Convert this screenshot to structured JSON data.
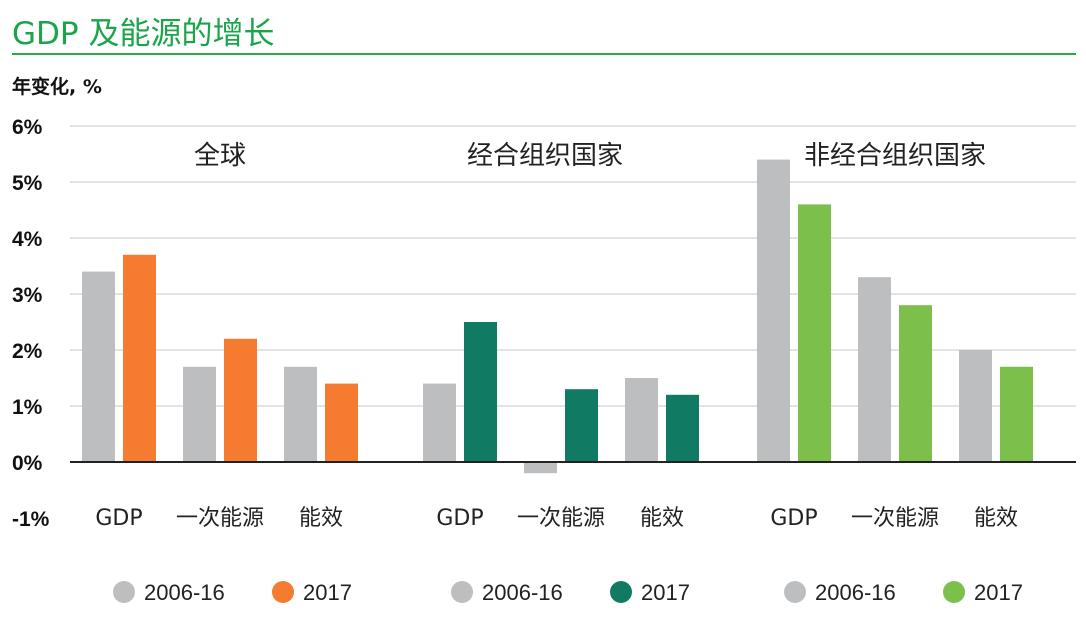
{
  "header": {
    "title": "GDP 及能源的增长",
    "ylabel": "年变化, %"
  },
  "chart_data": {
    "type": "bar",
    "ylim": [
      -1,
      6
    ],
    "yticks": [
      6,
      5,
      4,
      3,
      2,
      1,
      0,
      -1
    ],
    "ytick_labels": [
      "6%",
      "5%",
      "4%",
      "3%",
      "2%",
      "1%",
      "0%",
      "-1%"
    ],
    "grid": true,
    "legend_position": "bottom",
    "categories": [
      "GDP",
      "一次能源",
      "能效"
    ],
    "groups": [
      {
        "name": "全球",
        "series": [
          {
            "name": "2006-16",
            "color": "#bdbec0",
            "values": [
              3.4,
              1.7,
              1.7
            ]
          },
          {
            "name": "2017",
            "color": "#f47b30",
            "values": [
              3.7,
              2.2,
              1.4
            ]
          }
        ]
      },
      {
        "name": "经合组织国家",
        "series": [
          {
            "name": "2006-16",
            "color": "#bdbec0",
            "values": [
              1.4,
              -0.2,
              1.5
            ]
          },
          {
            "name": "2017",
            "color": "#117a62",
            "values": [
              2.5,
              1.3,
              1.2
            ]
          }
        ]
      },
      {
        "name": "非经合组织国家",
        "series": [
          {
            "name": "2006-16",
            "color": "#bdbec0",
            "values": [
              5.4,
              3.3,
              2.0
            ]
          },
          {
            "name": "2017",
            "color": "#7cc04b",
            "values": [
              4.6,
              2.8,
              1.7
            ]
          }
        ]
      }
    ]
  }
}
